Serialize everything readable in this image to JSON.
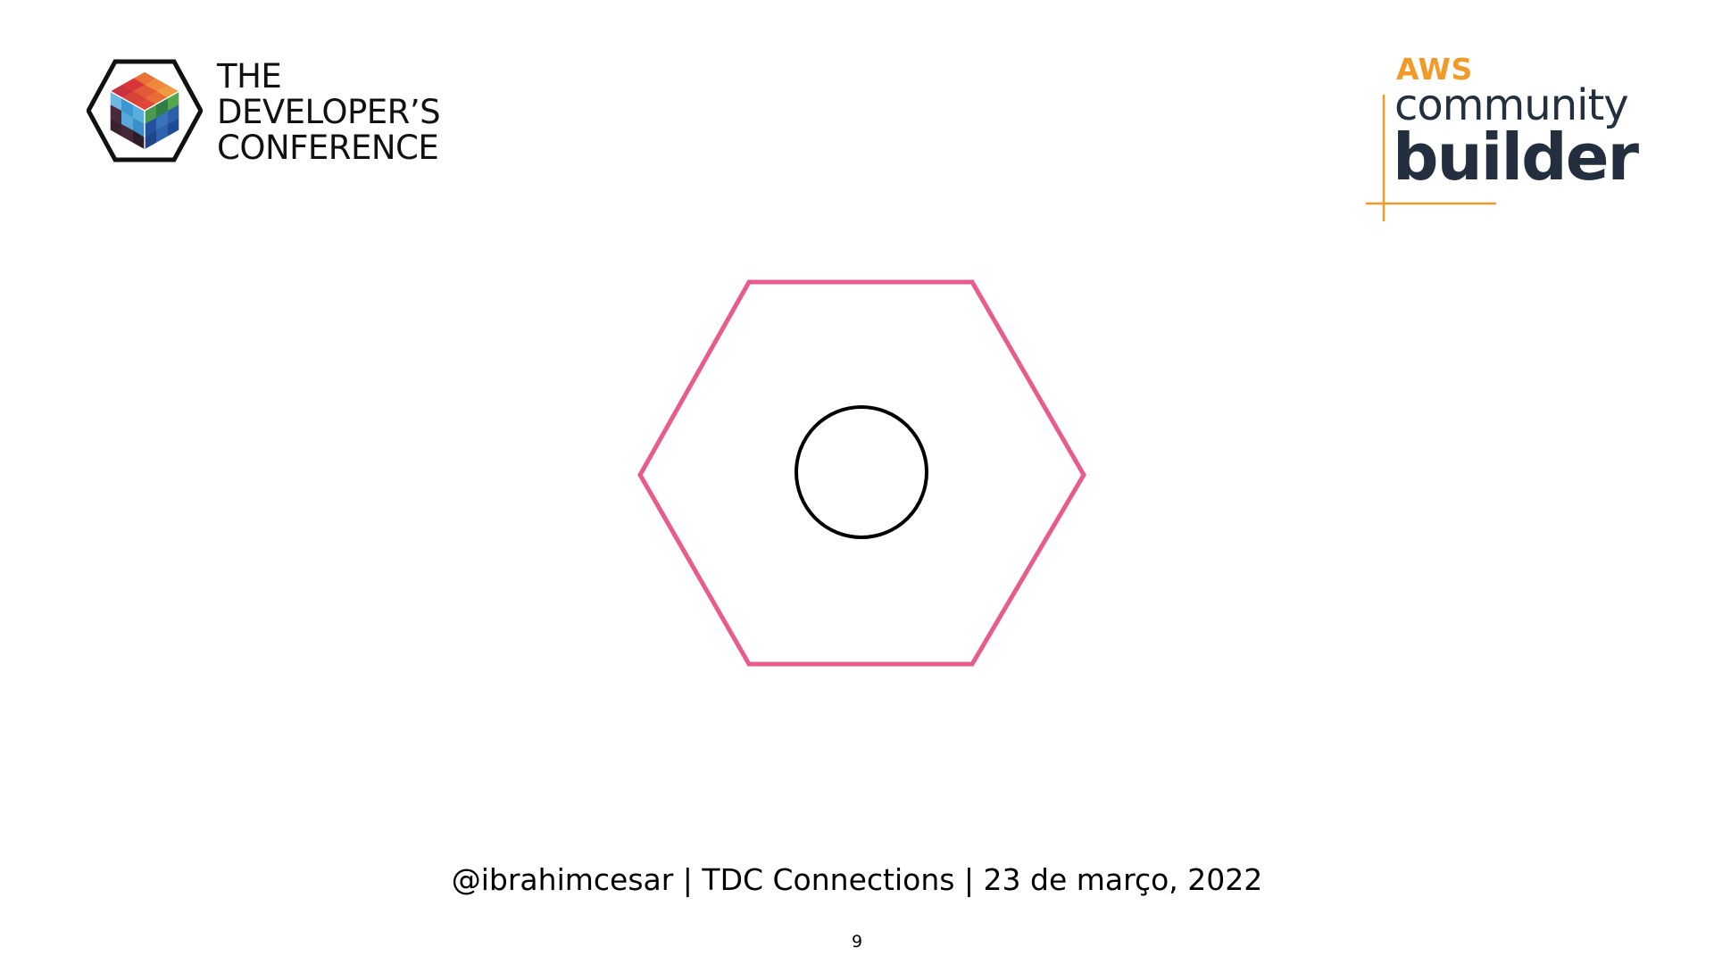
{
  "logos": {
    "tdc": {
      "lines": [
        "THE",
        "DEVELOPER’S",
        "CONFERENCE"
      ]
    },
    "aws": {
      "brand": "AWS",
      "line1": "community",
      "line2": "builder",
      "accent_color": "#f19a2a",
      "text_color": "#232f3e"
    }
  },
  "diagram": {
    "outer_shape": "hexagon",
    "outer_color": "#e75b8d",
    "inner_shape": "circle",
    "inner_color": "#000000"
  },
  "footer": {
    "text": "@ibrahimcesar | TDC Connections | 23 de março, 2022"
  },
  "page": {
    "number": "9"
  }
}
